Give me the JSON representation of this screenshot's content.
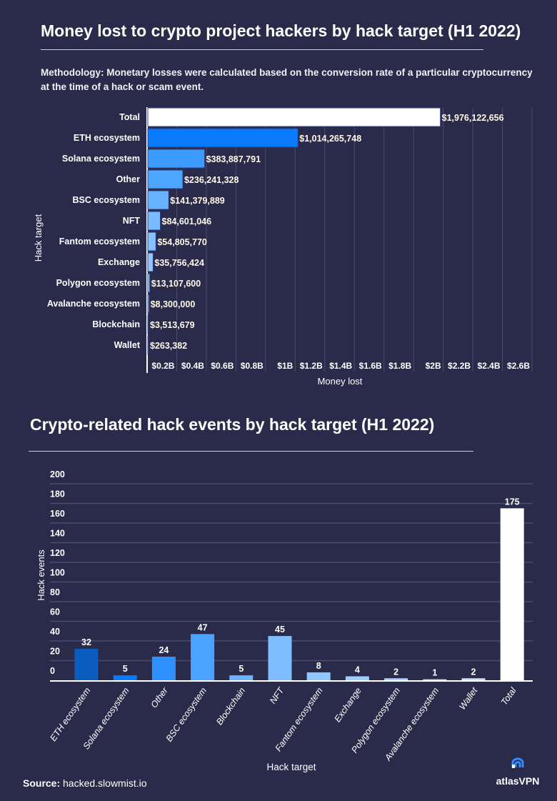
{
  "header": {
    "title1": "Money lost to crypto project hackers by hack target (H1 2022)",
    "methodology": "Methodology: Monetary losses were calculated based on the conversion rate of a particular cryptocurrency at the time of a hack or scam event.",
    "title2": "Crypto-related hack events by hack target (H1 2022)"
  },
  "footer": {
    "source_label": "Source:",
    "source": "hacked.slowmist.io",
    "brand": "atlasVPN",
    "brand_icon": "atlas-signal-icon"
  },
  "chart_data": [
    {
      "type": "bar",
      "orientation": "horizontal",
      "title": "Money lost to crypto project hackers by hack target (H1 2022)",
      "xlabel": "Money lost",
      "ylabel": "Hack target",
      "xlim": [
        0,
        2600000000
      ],
      "grid": true,
      "categories": [
        "Total",
        "ETH ecosystem",
        "Solana ecosystem",
        "Other",
        "BSC ecosystem",
        "NFT",
        "Fantom ecosystem",
        "Exchange",
        "Polygon ecosystem",
        "Avalanche ecosystem",
        "Blockchain",
        "Wallet"
      ],
      "values": [
        1976122656,
        1014265748,
        383887791,
        236241328,
        141379889,
        84601046,
        54805770,
        35756424,
        13107600,
        8300000,
        3513679,
        263382
      ],
      "data_labels": [
        "$1,976,122,656",
        "$1,014,265,748",
        "$383,887,791",
        "$236,241,328",
        "$141,379,889",
        "$84,601,046",
        "$54,805,770",
        "$35,756,424",
        "$13,107,600",
        "$8,300,000",
        "$3,513,679",
        "$263,382"
      ],
      "colors": [
        "#ffffff",
        "#0a7bff",
        "#3b9bff",
        "#4ea7ff",
        "#68b3ff",
        "#78bbff",
        "#86c2ff",
        "#92c8ff",
        "#9ccdff",
        "#a8d3ff",
        "#b4d9ff",
        "#c0dfff"
      ],
      "ticks": [
        200000000,
        400000000,
        600000000,
        800000000,
        1000000000,
        1200000000,
        1400000000,
        1600000000,
        1800000000,
        2000000000,
        2200000000,
        2400000000,
        2600000000
      ],
      "tick_labels": [
        "$0.2B",
        "$0.4B",
        "$0.6B",
        "$0.8B",
        "$1B",
        "$1.2B",
        "$1.4B",
        "$1.6B",
        "$1.8B",
        "$2B",
        "$2.2B",
        "$2.4B",
        "$2.6B"
      ]
    },
    {
      "type": "bar",
      "orientation": "vertical",
      "title": "Crypto-related hack events by hack target (H1 2022)",
      "xlabel": "Hack target",
      "ylabel": "Hack events",
      "ylim": [
        0,
        200
      ],
      "grid": true,
      "categories": [
        "ETH ecosystem",
        "Solana ecosystem",
        "Other",
        "BSC ecosystem",
        "Blockchain",
        "NFT",
        "Fantom ecosystem",
        "Exchange",
        "Polygon ecosystem",
        "Avalanche ecosystem",
        "Wallet",
        "Total"
      ],
      "values": [
        32,
        5,
        24,
        47,
        5,
        45,
        8,
        4,
        2,
        1,
        2,
        175
      ],
      "colors": [
        "#0b5cbf",
        "#0a7bff",
        "#2e91ff",
        "#4aa3ff",
        "#6ab3ff",
        "#80bfff",
        "#8ec6ff",
        "#9ccdff",
        "#aad4ff",
        "#b8dbff",
        "#c8e3ff",
        "#ffffff"
      ],
      "ticks": [
        0,
        20,
        40,
        60,
        80,
        100,
        120,
        140,
        160,
        180,
        200
      ],
      "tick_labels": [
        "0",
        "20",
        "40",
        "60",
        "80",
        "100",
        "120",
        "140",
        "160",
        "180",
        "200"
      ]
    }
  ]
}
